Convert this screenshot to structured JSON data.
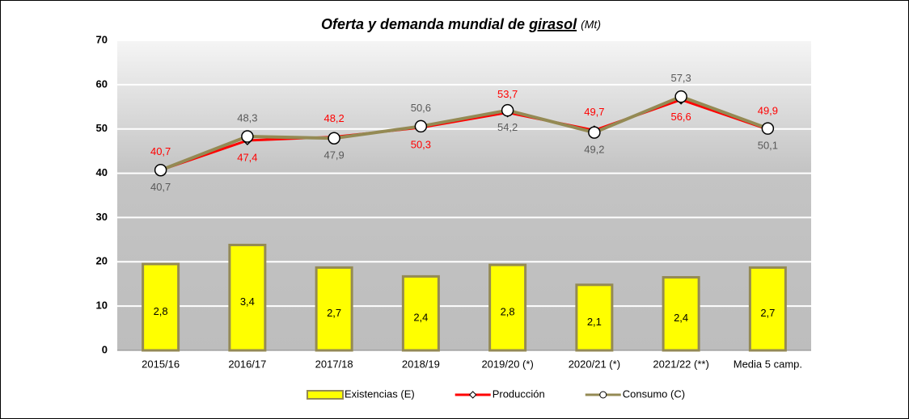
{
  "chart_data": {
    "type": "bar-line",
    "title": [
      "Oferta y demanda mundial de",
      "girasol",
      "(Mt)"
    ],
    "categories": [
      "2015/16",
      "2016/17",
      "2017/18",
      "2018/19",
      "2019/20 (*)",
      "2020/21 (*)",
      "2021/22 (**)",
      "Media 5 camp."
    ],
    "series": [
      {
        "name": "Existencias (E)",
        "type": "bar",
        "color": "#ffff00",
        "values": [
          19.5,
          23.8,
          18.7,
          16.7,
          19.3,
          14.8,
          16.5,
          18.7
        ],
        "annotations": [
          "2,8",
          "3,4",
          "2,7",
          "2,4",
          "2,8",
          "2,1",
          "2,4",
          "2,7"
        ]
      },
      {
        "name": "Producción",
        "type": "line",
        "color": "#ff0000",
        "values": [
          40.7,
          47.4,
          48.2,
          50.3,
          53.7,
          49.7,
          56.6,
          49.9
        ],
        "value_labels": [
          "40,7",
          "47,4",
          "48,2",
          "50,3",
          "53,7",
          "49,7",
          "56,6",
          "49,9"
        ]
      },
      {
        "name": "Consumo (C)",
        "type": "line",
        "color": "#948a54",
        "values": [
          40.7,
          48.3,
          47.9,
          50.6,
          54.2,
          49.2,
          57.3,
          50.1
        ],
        "value_labels": [
          "40,7",
          "48,3",
          "47,9",
          "50,6",
          "54,2",
          "49,2",
          "57,3",
          "50,1"
        ]
      }
    ],
    "ylim": [
      0,
      70
    ],
    "yticks": [
      0,
      10,
      20,
      30,
      40,
      50,
      60,
      70
    ],
    "grid": true,
    "legend": "bottom"
  }
}
